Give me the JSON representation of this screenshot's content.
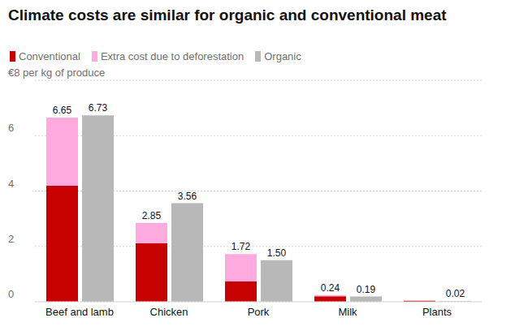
{
  "chart_data": {
    "type": "bar",
    "title": "Climate costs are similar for organic and conventional meat",
    "categories": [
      "Beef and lamb",
      "Chicken",
      "Pork",
      "Milk",
      "Plants"
    ],
    "series": [
      {
        "name": "Conventional",
        "color": "#c70000",
        "stacked": true,
        "values": [
          4.19,
          2.11,
          0.73,
          0.2,
          0.04
        ]
      },
      {
        "name": "Extra cost due to deforestation",
        "color": "#ffabdf",
        "stacked": true,
        "values": [
          2.46,
          0.74,
          0.99,
          0.04,
          0
        ]
      },
      {
        "name": "Organic",
        "color": "#b8b8b8",
        "values": [
          6.73,
          3.56,
          1.5,
          0.19,
          0.02
        ],
        "value_labels": [
          "6.73",
          "3.56",
          "1.50",
          "0.19",
          "0.02"
        ]
      }
    ],
    "totals": [
      6.65,
      2.85,
      1.72,
      0.24,
      0.04
    ],
    "ylim": [
      0,
      8
    ],
    "yticks": [
      0,
      2,
      4,
      6,
      {
        "value": 8,
        "label": "€8 per kg of produce"
      }
    ],
    "grid": true,
    "legend": "top-left",
    "data_labels": true
  }
}
